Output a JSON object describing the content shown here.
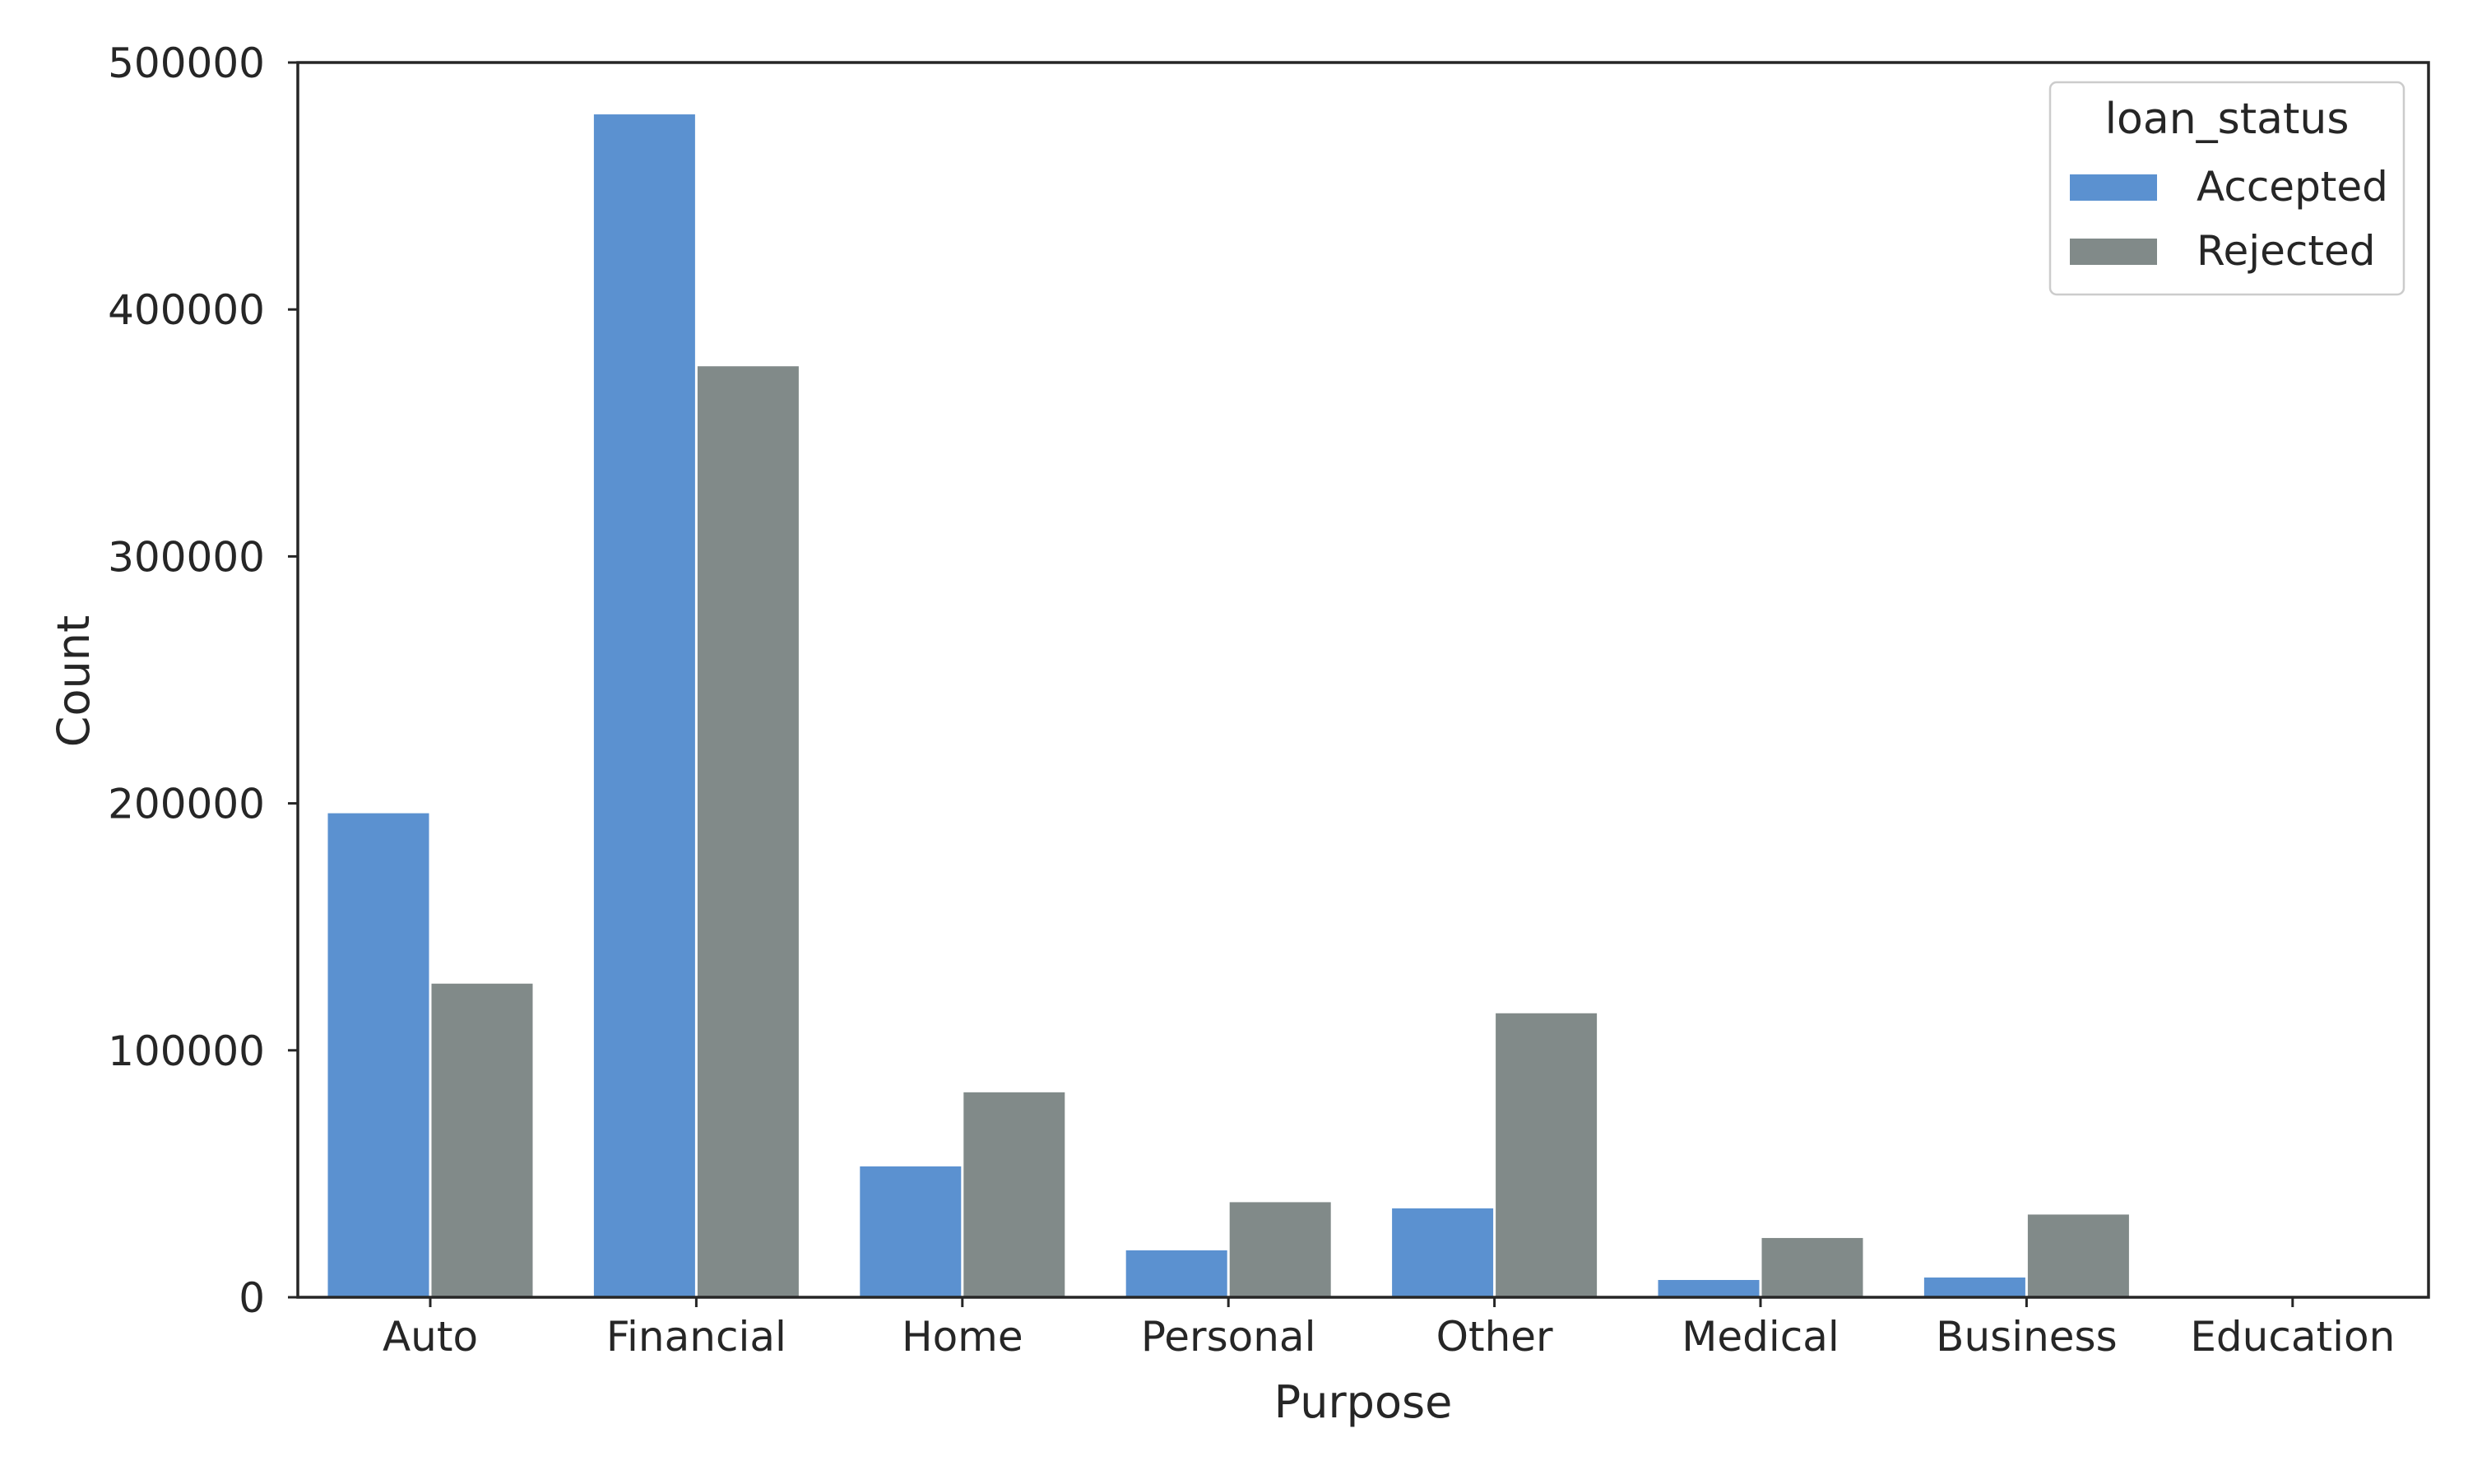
{
  "chart_data": {
    "type": "bar",
    "title": "",
    "xlabel": "Purpose",
    "ylabel": "Count",
    "categories": [
      "Auto",
      "Financial",
      "Home",
      "Personal",
      "Other",
      "Medical",
      "Business",
      "Education"
    ],
    "series": [
      {
        "name": "Accepted",
        "color": "#5b91d0",
        "values": [
          196000,
          479000,
          53000,
          19000,
          36000,
          7000,
          8000,
          0
        ]
      },
      {
        "name": "Rejected",
        "color": "#818a89",
        "values": [
          127000,
          377000,
          83000,
          38500,
          115000,
          24000,
          33500,
          0
        ]
      }
    ],
    "ylim": [
      0,
      500000
    ],
    "yticks": [
      0,
      100000,
      200000,
      300000,
      400000,
      500000
    ],
    "ytick_labels": [
      "0",
      "100000",
      "200000",
      "300000",
      "400000",
      "500000"
    ],
    "grid": false,
    "legend": {
      "title": "loan_status",
      "placement": "top-right"
    }
  }
}
